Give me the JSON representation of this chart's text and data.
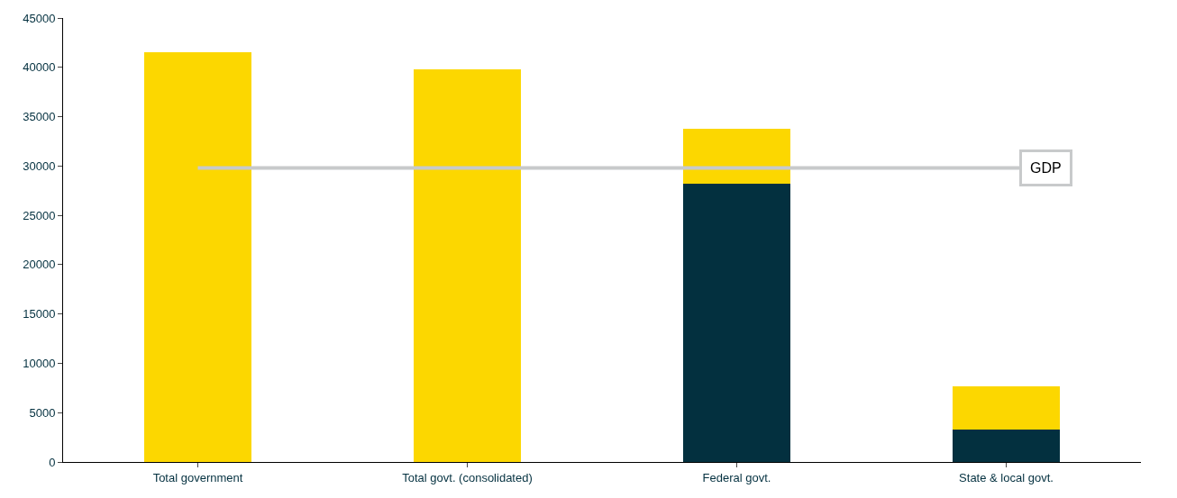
{
  "chart_data": {
    "type": "bar",
    "stacked": true,
    "categories": [
      "Total government",
      "Total govt. (consolidated)",
      "Federal govt.",
      "State & local govt."
    ],
    "series": [
      {
        "color": "#03303f",
        "values": [
          null,
          null,
          28200,
          3300
        ]
      },
      {
        "color": "#fcd700",
        "values": [
          41500,
          39800,
          5600,
          4400
        ]
      }
    ],
    "ylim": [
      0,
      45000
    ],
    "yticks": [
      0,
      5000,
      10000,
      15000,
      20000,
      25000,
      30000,
      35000,
      40000,
      45000
    ],
    "ref_lines": [
      {
        "axis": "y",
        "value": 29800,
        "label": "GDP",
        "color": "#c8cacb"
      }
    ]
  }
}
